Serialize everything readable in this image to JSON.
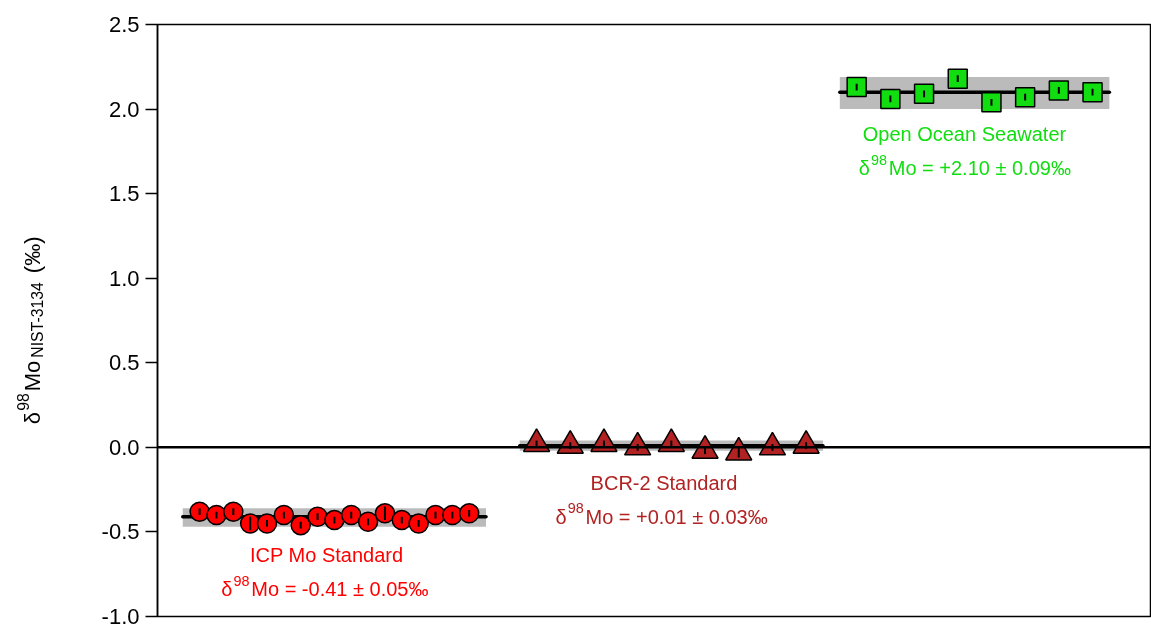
{
  "chart_data": {
    "type": "scatter",
    "ylabel": "δ$^{98}$Mo$_{NIST-3134}$ (‰)",
    "ylim": [
      -1,
      2.5
    ],
    "yticks": [
      {
        "value": -1,
        "label": "-1.0"
      },
      -0.5,
      {
        "value": 0,
        "label": "0.0"
      },
      0.5,
      {
        "value": 1,
        "label": "1.0"
      },
      1.5,
      {
        "value": 2,
        "label": "2.0"
      },
      2.5
    ],
    "tick_labels": "y",
    "grid": false,
    "categories": [
      null,
      null,
      null,
      null,
      null,
      null,
      null,
      null,
      null,
      null,
      null,
      null,
      null,
      null,
      null,
      null,
      null,
      null,
      null,
      null,
      null,
      null,
      null,
      null,
      null,
      null,
      null,
      null,
      null,
      null,
      null,
      null,
      null,
      null,
      null,
      null,
      null,
      null,
      null,
      null,
      null,
      null,
      null,
      null,
      null,
      null,
      null,
      null,
      null,
      null,
      null,
      null,
      null,
      null,
      null,
      null,
      null,
      null,
      null
    ],
    "ref_lines": [
      {
        "axis": "y",
        "value": 0,
        "color": "#000000"
      }
    ],
    "annotations": [
      "δ$^{98}$Mo = -0.41 ± 0.05‰",
      "δ$^{98}$Mo = +0.01 ± 0.03‰",
      "δ$^{98}$Mo = +2.10 ± 0.09‰"
    ],
    "series": [
      {
        "type": "line",
        "color": "#000000",
        "values": [
          null,
          -0.41,
          -0.41,
          -0.41,
          -0.41,
          -0.41,
          -0.41,
          -0.41,
          -0.41,
          -0.41,
          -0.41,
          -0.41,
          -0.41,
          -0.41,
          -0.41,
          -0.41,
          -0.41,
          -0.41,
          -0.41,
          -0.41,
          null,
          null,
          null,
          null,
          null,
          null,
          null,
          null,
          null,
          null,
          null,
          null,
          null,
          null,
          null,
          null,
          null,
          null,
          null,
          null,
          null,
          null,
          null,
          null,
          null,
          null,
          null,
          null,
          null,
          null,
          null,
          null,
          null,
          null,
          null,
          null,
          null,
          null,
          null
        ],
        "lower": [
          null,
          -0.47,
          -0.47,
          -0.47,
          -0.47,
          -0.47,
          -0.47,
          -0.47,
          -0.47,
          -0.47,
          -0.47,
          -0.47,
          -0.47,
          -0.47,
          -0.47,
          -0.47,
          -0.47,
          -0.47,
          -0.47,
          -0.47,
          null,
          null,
          null,
          null,
          null,
          null,
          null,
          null,
          null,
          null,
          null,
          null,
          null,
          null,
          null,
          null,
          null,
          null,
          null,
          null,
          null,
          null,
          null,
          null,
          null,
          null,
          null,
          null,
          null,
          null,
          null,
          null,
          null,
          null,
          null,
          null,
          null,
          null,
          null
        ],
        "upper": [
          null,
          -0.36,
          -0.36,
          -0.36,
          -0.36,
          -0.36,
          -0.36,
          -0.36,
          -0.36,
          -0.36,
          -0.36,
          -0.36,
          -0.36,
          -0.36,
          -0.36,
          -0.36,
          -0.36,
          -0.36,
          -0.36,
          -0.36,
          null,
          null,
          null,
          null,
          null,
          null,
          null,
          null,
          null,
          null,
          null,
          null,
          null,
          null,
          null,
          null,
          null,
          null,
          null,
          null,
          null,
          null,
          null,
          null,
          null,
          null,
          null,
          null,
          null,
          null,
          null,
          null,
          null,
          null,
          null,
          null,
          null,
          null,
          null
        ]
      },
      {
        "type": "scatter",
        "name": "ICP Mo Standard",
        "color": "#ff0000",
        "marker": "circle",
        "values": [
          null,
          null,
          -0.38,
          -0.4,
          -0.38,
          -0.45,
          -0.45,
          -0.4,
          -0.46,
          -0.41,
          -0.43,
          -0.4,
          -0.44,
          -0.39,
          -0.43,
          -0.45,
          -0.4,
          -0.4,
          -0.39,
          null,
          null,
          null,
          null,
          null,
          null,
          null,
          null,
          null,
          null,
          null,
          null,
          null,
          null,
          null,
          null,
          null,
          null,
          null,
          null,
          null,
          null,
          null,
          null,
          null,
          null,
          null,
          null,
          null,
          null,
          null,
          null,
          null,
          null,
          null,
          null,
          null,
          null,
          null,
          null
        ],
        "errors": [
          null,
          null,
          0.02,
          0.02,
          0.02,
          0.04,
          0.02,
          0.02,
          0.02,
          0.02,
          0.02,
          0.02,
          0.02,
          0.04,
          0.02,
          0.02,
          0.02,
          0.02,
          0.02,
          null,
          null,
          null,
          null,
          null,
          null,
          null,
          null,
          null,
          null,
          null,
          null,
          null,
          null,
          null,
          null,
          null,
          null,
          null,
          null,
          null,
          null,
          null,
          null,
          null,
          null,
          null,
          null,
          null,
          null,
          null,
          null,
          null,
          null,
          null,
          null,
          null,
          null,
          null,
          null
        ]
      },
      {
        "type": "line",
        "color": "#000000",
        "values": [
          null,
          null,
          null,
          null,
          null,
          null,
          null,
          null,
          null,
          null,
          null,
          null,
          null,
          null,
          null,
          null,
          null,
          null,
          null,
          null,
          null,
          0.01,
          0.01,
          0.01,
          0.01,
          0.01,
          0.01,
          0.01,
          0.01,
          0.01,
          0.01,
          0.01,
          0.01,
          0.01,
          0.01,
          0.01,
          0.01,
          0.01,
          0.01,
          0.01,
          null,
          null,
          null,
          null,
          null,
          null,
          null,
          null,
          null,
          null,
          null,
          null,
          null,
          null,
          null,
          null,
          null,
          null,
          null
        ],
        "lower": [
          null,
          null,
          null,
          null,
          null,
          null,
          null,
          null,
          null,
          null,
          null,
          null,
          null,
          null,
          null,
          null,
          null,
          null,
          null,
          null,
          null,
          -0.02,
          -0.02,
          -0.02,
          -0.02,
          -0.02,
          -0.02,
          -0.02,
          -0.02,
          -0.02,
          -0.02,
          -0.02,
          -0.02,
          -0.02,
          -0.02,
          -0.02,
          -0.02,
          -0.02,
          -0.02,
          -0.02,
          null,
          null,
          null,
          null,
          null,
          null,
          null,
          null,
          null,
          null,
          null,
          null,
          null,
          null,
          null,
          null,
          null,
          null,
          null
        ],
        "upper": [
          null,
          null,
          null,
          null,
          null,
          null,
          null,
          null,
          null,
          null,
          null,
          null,
          null,
          null,
          null,
          null,
          null,
          null,
          null,
          null,
          null,
          0.04,
          0.04,
          0.04,
          0.04,
          0.04,
          0.04,
          0.04,
          0.04,
          0.04,
          0.04,
          0.04,
          0.04,
          0.04,
          0.04,
          0.04,
          0.04,
          0.04,
          0.04,
          0.04,
          null,
          null,
          null,
          null,
          null,
          null,
          null,
          null,
          null,
          null,
          null,
          null,
          null,
          null,
          null,
          null,
          null,
          null,
          null
        ]
      },
      {
        "type": "scatter",
        "name": "BCR-2 Standard",
        "color": "#b22222",
        "marker": "triangle",
        "values": [
          null,
          null,
          null,
          null,
          null,
          null,
          null,
          null,
          null,
          null,
          null,
          null,
          null,
          null,
          null,
          null,
          null,
          null,
          null,
          null,
          null,
          null,
          0.02,
          null,
          0.01,
          null,
          0.02,
          null,
          0.0,
          null,
          0.02,
          null,
          -0.02,
          null,
          -0.03,
          null,
          0.0,
          null,
          0.01,
          null,
          null,
          null,
          null,
          null,
          null,
          null,
          null,
          null,
          null,
          null,
          null,
          null,
          null,
          null,
          null,
          null,
          null,
          null,
          null
        ],
        "errors": [
          null,
          null,
          null,
          null,
          null,
          null,
          null,
          null,
          null,
          null,
          null,
          null,
          null,
          null,
          null,
          null,
          null,
          null,
          null,
          null,
          null,
          null,
          0.02,
          null,
          0.02,
          null,
          0.02,
          null,
          0.02,
          null,
          0.02,
          null,
          0.02,
          null,
          0.03,
          null,
          0.02,
          null,
          0.02,
          null,
          null,
          null,
          null,
          null,
          null,
          null,
          null,
          null,
          null,
          null,
          null,
          null,
          null,
          null,
          null,
          null,
          null,
          null,
          null
        ]
      },
      {
        "type": "line",
        "color": "#000000",
        "values": [
          null,
          null,
          null,
          null,
          null,
          null,
          null,
          null,
          null,
          null,
          null,
          null,
          null,
          null,
          null,
          null,
          null,
          null,
          null,
          null,
          null,
          null,
          null,
          null,
          null,
          null,
          null,
          null,
          null,
          null,
          null,
          null,
          null,
          null,
          null,
          null,
          null,
          null,
          null,
          null,
          2.1,
          2.1,
          2.1,
          2.1,
          2.1,
          2.1,
          2.1,
          2.1,
          2.1,
          2.1,
          2.1,
          2.1,
          2.1,
          2.1,
          2.1,
          2.1,
          2.1,
          null,
          null
        ],
        "lower": [
          null,
          null,
          null,
          null,
          null,
          null,
          null,
          null,
          null,
          null,
          null,
          null,
          null,
          null,
          null,
          null,
          null,
          null,
          null,
          null,
          null,
          null,
          null,
          null,
          null,
          null,
          null,
          null,
          null,
          null,
          null,
          null,
          null,
          null,
          null,
          null,
          null,
          null,
          null,
          null,
          2.0,
          2.0,
          2.0,
          2.0,
          2.0,
          2.0,
          2.0,
          2.0,
          2.0,
          2.0,
          2.0,
          2.0,
          2.0,
          2.0,
          2.0,
          2.0,
          2.0,
          null,
          null
        ],
        "upper": [
          null,
          null,
          null,
          null,
          null,
          null,
          null,
          null,
          null,
          null,
          null,
          null,
          null,
          null,
          null,
          null,
          null,
          null,
          null,
          null,
          null,
          null,
          null,
          null,
          null,
          null,
          null,
          null,
          null,
          null,
          null,
          null,
          null,
          null,
          null,
          null,
          null,
          null,
          null,
          null,
          2.19,
          2.19,
          2.19,
          2.19,
          2.19,
          2.19,
          2.19,
          2.19,
          2.19,
          2.19,
          2.19,
          2.19,
          2.19,
          2.19,
          2.19,
          2.19,
          2.19,
          null,
          null
        ]
      },
      {
        "type": "scatter",
        "name": "Open Ocean Seawater",
        "color": "#11dd11",
        "marker": "square",
        "values": [
          null,
          null,
          null,
          null,
          null,
          null,
          null,
          null,
          null,
          null,
          null,
          null,
          null,
          null,
          null,
          null,
          null,
          null,
          null,
          null,
          null,
          null,
          null,
          null,
          null,
          null,
          null,
          null,
          null,
          null,
          null,
          null,
          null,
          null,
          null,
          null,
          null,
          null,
          null,
          null,
          null,
          2.13,
          null,
          2.06,
          null,
          2.09,
          null,
          2.18,
          null,
          2.04,
          null,
          2.07,
          null,
          2.11,
          null,
          2.1,
          null,
          null,
          null
        ],
        "errors": [
          null,
          null,
          null,
          null,
          null,
          null,
          null,
          null,
          null,
          null,
          null,
          null,
          null,
          null,
          null,
          null,
          null,
          null,
          null,
          null,
          null,
          null,
          null,
          null,
          null,
          null,
          null,
          null,
          null,
          null,
          null,
          null,
          null,
          null,
          null,
          null,
          null,
          null,
          null,
          null,
          null,
          0.02,
          null,
          0.02,
          null,
          0.02,
          null,
          0.02,
          null,
          0.02,
          null,
          0.02,
          null,
          0.02,
          null,
          0.02,
          null,
          null,
          null
        ]
      }
    ]
  }
}
